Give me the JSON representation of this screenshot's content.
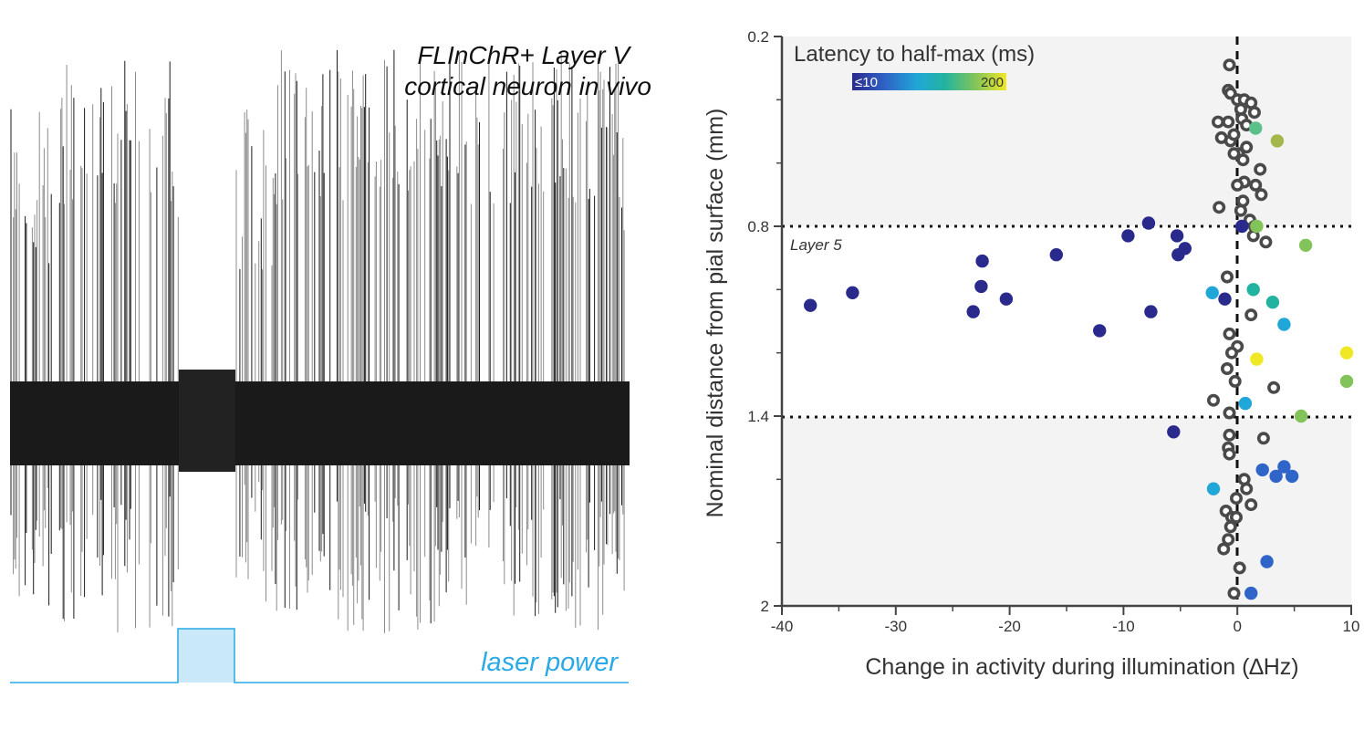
{
  "left_panel": {
    "title_line1": "FLInChR+ Layer V",
    "title_line2": "cortical neuron in vivo",
    "laser_label": "laser power",
    "trace_color": "#1a1a1a",
    "spike_color": "#8c8c8c",
    "laser_color": "#29a9e6",
    "laser_fill": "#c9e8f8"
  },
  "chart_data": {
    "type": "scatter",
    "xlabel": "Change in activity during illumination (∆Hz)",
    "ylabel": "Nominal distance from pial surface (mm)",
    "xlim": [
      -40,
      10
    ],
    "ylim": [
      0.2,
      2
    ],
    "y_inverted": true,
    "x_ticks": [
      "-40",
      "-30",
      "-20",
      "-10",
      "0",
      "10"
    ],
    "x_tick_values": [
      -40,
      -30,
      -20,
      -10,
      0,
      10
    ],
    "y_ticks": [
      "0.2",
      "0.8",
      "1.4",
      "2"
    ],
    "y_tick_values": [
      0.2,
      0.8,
      1.4,
      2
    ],
    "y_minor_ticks": [
      0.4,
      0.6,
      1.0,
      1.2,
      1.6,
      1.8
    ],
    "layer_label": "Layer 5",
    "layer_bounds": [
      0.8,
      1.4
    ],
    "legend": {
      "title": "Latency to half-max (ms)",
      "min_label": "≤10",
      "max_label": "200",
      "colors": [
        "#2a2a8c",
        "#2f65c8",
        "#20a7d8",
        "#22b3a0",
        "#82c45a",
        "#f0e825"
      ]
    },
    "no_change_color": "#4a4a4a",
    "series": [
      {
        "name": "No latency (open circles)",
        "marker": "open",
        "points": [
          [
            -0.7,
            0.29
          ],
          [
            -0.8,
            0.37
          ],
          [
            -0.6,
            0.38
          ],
          [
            0.0,
            0.4
          ],
          [
            0.6,
            0.4
          ],
          [
            1.2,
            0.41
          ],
          [
            0.3,
            0.43
          ],
          [
            1.5,
            0.44
          ],
          [
            -1.7,
            0.47
          ],
          [
            -0.8,
            0.47
          ],
          [
            0.4,
            0.46
          ],
          [
            0.8,
            0.48
          ],
          [
            -1.4,
            0.52
          ],
          [
            -0.6,
            0.53
          ],
          [
            -0.3,
            0.51
          ],
          [
            0.8,
            0.55
          ],
          [
            0.1,
            0.57
          ],
          [
            -0.3,
            0.57
          ],
          [
            0.5,
            0.59
          ],
          [
            2.0,
            0.62
          ],
          [
            0.6,
            0.66
          ],
          [
            0.0,
            0.67
          ],
          [
            1.6,
            0.67
          ],
          [
            2.1,
            0.7
          ],
          [
            0.5,
            0.72
          ],
          [
            -1.6,
            0.74
          ],
          [
            0.3,
            0.75
          ],
          [
            1.1,
            0.78
          ],
          [
            1.5,
            0.8
          ],
          [
            1.4,
            0.83
          ],
          [
            2.5,
            0.85
          ],
          [
            -0.9,
            0.96
          ],
          [
            1.2,
            1.08
          ],
          [
            -0.7,
            1.14
          ],
          [
            0.0,
            1.18
          ],
          [
            -0.5,
            1.2
          ],
          [
            -0.9,
            1.25
          ],
          [
            -0.2,
            1.29
          ],
          [
            3.2,
            1.31
          ],
          [
            -2.1,
            1.35
          ],
          [
            -0.7,
            1.39
          ],
          [
            -0.7,
            1.46
          ],
          [
            2.3,
            1.47
          ],
          [
            -0.8,
            1.5
          ],
          [
            -0.7,
            1.52
          ],
          [
            0.6,
            1.6
          ],
          [
            0.8,
            1.63
          ],
          [
            -0.1,
            1.66
          ],
          [
            1.2,
            1.68
          ],
          [
            -1.0,
            1.7
          ],
          [
            -0.5,
            1.72
          ],
          [
            -0.1,
            1.72
          ],
          [
            -0.6,
            1.75
          ],
          [
            -0.8,
            1.79
          ],
          [
            -1.2,
            1.82
          ],
          [
            0.2,
            1.88
          ],
          [
            -0.3,
            1.96
          ]
        ]
      },
      {
        "name": "Latency-coded (filled circles)",
        "marker": "filled",
        "points": [
          [
            -37.5,
            1.05,
            "#2a2a8c"
          ],
          [
            -33.8,
            1.01,
            "#2a2a8c"
          ],
          [
            -22.4,
            0.91,
            "#2a2a8c"
          ],
          [
            -22.5,
            0.99,
            "#2a2a8c"
          ],
          [
            -23.2,
            1.07,
            "#2a2a8c"
          ],
          [
            -20.3,
            1.03,
            "#2a2a8c"
          ],
          [
            -15.9,
            0.89,
            "#2a2a8c"
          ],
          [
            -12.1,
            1.13,
            "#2a2a8c"
          ],
          [
            -9.6,
            0.83,
            "#2a2a8c"
          ],
          [
            -7.8,
            0.79,
            "#2a2a8c"
          ],
          [
            -7.6,
            1.07,
            "#2a2a8c"
          ],
          [
            -5.3,
            0.83,
            "#2a2a8c"
          ],
          [
            -5.2,
            0.89,
            "#2a2a8c"
          ],
          [
            -4.6,
            0.87,
            "#2a2a8c"
          ],
          [
            0.4,
            0.8,
            "#2a2a8c"
          ],
          [
            -1.1,
            1.03,
            "#2a2a8c"
          ],
          [
            -5.6,
            1.45,
            "#2a2a8c"
          ],
          [
            1.2,
            1.96,
            "#2f65c8"
          ],
          [
            2.2,
            1.57,
            "#2f65c8"
          ],
          [
            3.4,
            1.59,
            "#2f65c8"
          ],
          [
            4.1,
            1.56,
            "#2f65c8"
          ],
          [
            4.8,
            1.59,
            "#2f65c8"
          ],
          [
            2.6,
            1.86,
            "#2f65c8"
          ],
          [
            -2.2,
            1.01,
            "#20a7d8"
          ],
          [
            4.1,
            1.11,
            "#20a7d8"
          ],
          [
            0.7,
            1.36,
            "#20a7d8"
          ],
          [
            -2.1,
            1.63,
            "#20a7d8"
          ],
          [
            1.4,
            1.0,
            "#22b3a0"
          ],
          [
            3.1,
            1.04,
            "#22b3a0"
          ],
          [
            1.6,
            0.49,
            "#5cc08a"
          ],
          [
            1.7,
            0.8,
            "#82c45a"
          ],
          [
            3.5,
            0.53,
            "#a3b84a"
          ],
          [
            6.0,
            0.86,
            "#82c45a"
          ],
          [
            5.6,
            1.4,
            "#82c45a"
          ],
          [
            9.6,
            1.29,
            "#82c45a"
          ],
          [
            1.7,
            1.22,
            "#f0e825"
          ],
          [
            9.6,
            1.2,
            "#f0e825"
          ]
        ]
      }
    ]
  }
}
